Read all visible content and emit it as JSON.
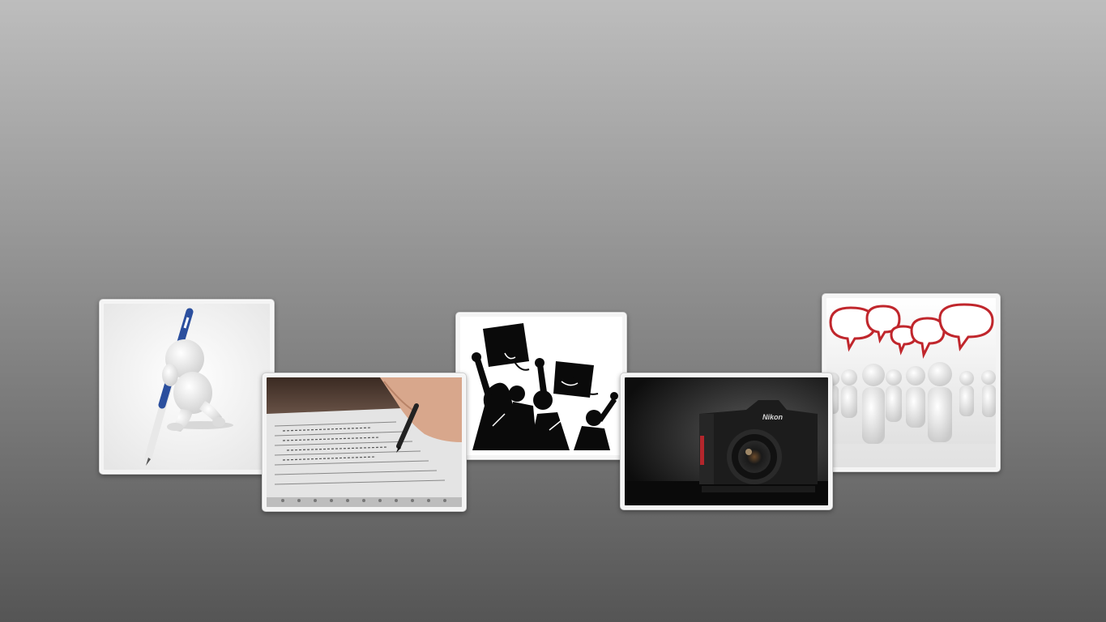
{
  "gallery": {
    "items": [
      {
        "id": "pen-figure",
        "icon": "3d-figure-with-pen-icon"
      },
      {
        "id": "notebook",
        "icon": "hand-writing-notebook-icon"
      },
      {
        "id": "graduation",
        "icon": "graduation-celebration-icon"
      },
      {
        "id": "camera",
        "icon": "dslr-camera-icon",
        "brand_text": "Nikon"
      },
      {
        "id": "chat-group",
        "icon": "people-speech-bubbles-icon"
      }
    ]
  },
  "colors": {
    "background_top": "#bdbdbd",
    "background_bottom": "#555555",
    "card_frame": "#f4f4f4",
    "accent_blue": "#2b4f9e",
    "speech_red": "#c0262c"
  }
}
